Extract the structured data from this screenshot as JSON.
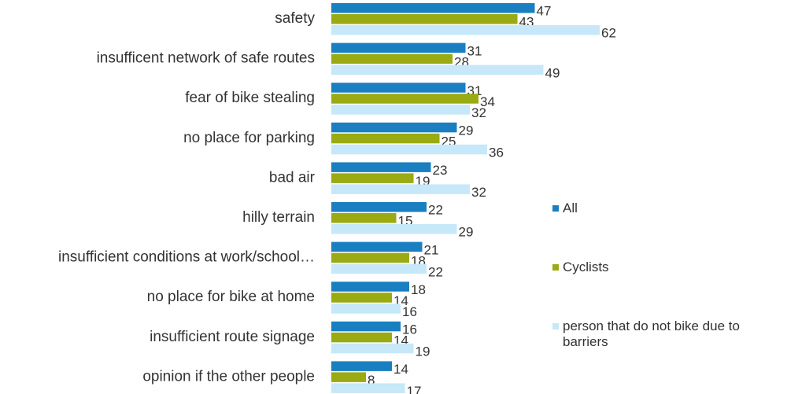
{
  "chart_data": {
    "type": "hbar",
    "categories": [
      "safety",
      "insufficent network of safe routes",
      "fear of bike stealing",
      "no place for parking",
      "bad air",
      "hilly terrain",
      "insufficient conditions at work/school…",
      "no place for bike at home",
      "insufficient route signage",
      "opinion if the other people"
    ],
    "series": [
      {
        "name": "All",
        "color": "#1a7fc1",
        "values": [
          47,
          31,
          31,
          29,
          23,
          22,
          21,
          18,
          16,
          14
        ]
      },
      {
        "name": "Cyclists",
        "color": "#9aaa13",
        "values": [
          43,
          28,
          34,
          25,
          19,
          15,
          18,
          14,
          14,
          8
        ]
      },
      {
        "name": "person that do not bike due to barriers",
        "color": "#c6e8f8",
        "values": [
          62,
          49,
          32,
          36,
          32,
          29,
          22,
          16,
          19,
          17
        ]
      }
    ],
    "xlim": [
      0,
      70
    ],
    "legend": "right"
  }
}
